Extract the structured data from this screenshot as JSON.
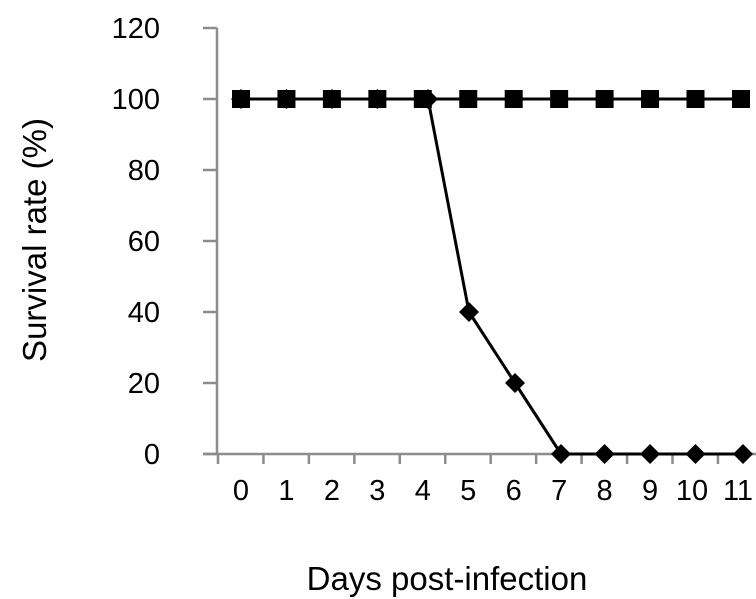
{
  "chart_data": {
    "type": "line",
    "xlabel": "Days post-infection",
    "ylabel": "Survival rate (%)",
    "ylim": [
      0,
      120
    ],
    "y_ticks": [
      "0",
      "20",
      "40",
      "60",
      "80",
      "100",
      "120"
    ],
    "x_ticks": [
      "0",
      "1",
      "2",
      "3",
      "4",
      "5",
      "6",
      "7",
      "8",
      "9",
      "10",
      "11"
    ],
    "grid": false,
    "legend": "none",
    "series": [
      {
        "marker": "square",
        "color": "#000000",
        "x": [
          0,
          1,
          2,
          3,
          4,
          5,
          6,
          7,
          8,
          9,
          10,
          11
        ],
        "values": [
          100,
          100,
          100,
          100,
          100,
          100,
          100,
          100,
          100,
          100,
          100,
          100
        ]
      },
      {
        "marker": "diamond",
        "color": "#000000",
        "x": [
          0,
          1,
          2,
          3,
          4,
          5,
          6,
          7,
          8,
          9,
          10,
          11
        ],
        "values": [
          100,
          100,
          100,
          100,
          100,
          40,
          20,
          0,
          0,
          0,
          0,
          0
        ]
      }
    ]
  }
}
